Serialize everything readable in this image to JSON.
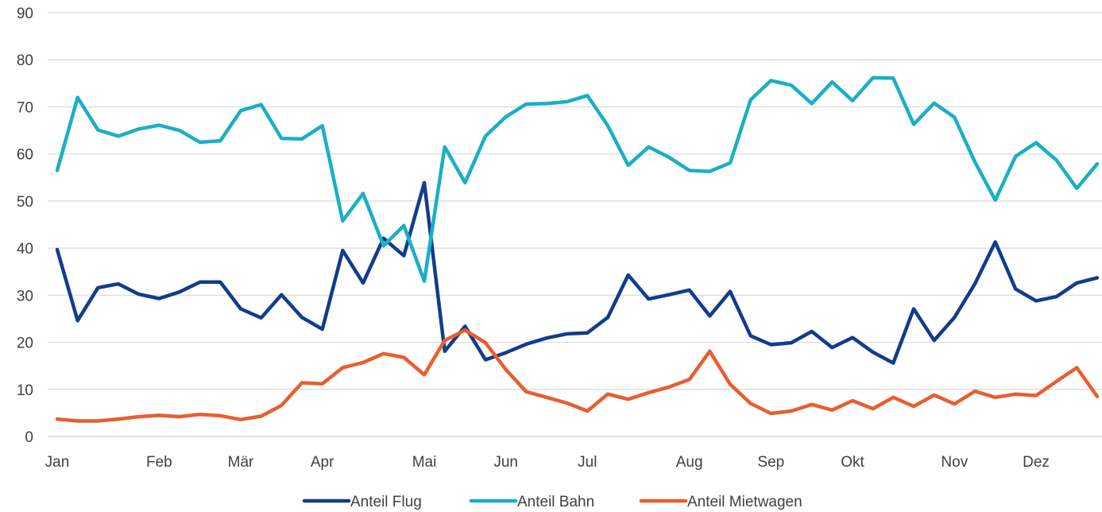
{
  "chart_data": {
    "type": "line",
    "title": "",
    "xlabel": "",
    "ylabel": "",
    "ylim": [
      0,
      90
    ],
    "yticks": [
      "0",
      "10",
      "20",
      "30",
      "40",
      "50",
      "60",
      "70",
      "80",
      "90"
    ],
    "grid": true,
    "legend_position": "bottom",
    "month_labels": [
      {
        "label": "Jan",
        "x": 0
      },
      {
        "label": "Feb",
        "x": 5
      },
      {
        "label": "Mär",
        "x": 9
      },
      {
        "label": "Apr",
        "x": 13
      },
      {
        "label": "Mai",
        "x": 18
      },
      {
        "label": "Jun",
        "x": 22
      },
      {
        "label": "Jul",
        "x": 26
      },
      {
        "label": "Aug",
        "x": 31
      },
      {
        "label": "Sep",
        "x": 35
      },
      {
        "label": "Okt",
        "x": 39
      },
      {
        "label": "Nov",
        "x": 44
      },
      {
        "label": "Dez",
        "x": 48
      }
    ],
    "series": [
      {
        "name": "Anteil Flug",
        "color": "#123c8c",
        "values": [
          39.7,
          24.6,
          31.6,
          32.4,
          30.2,
          29.3,
          30.7,
          32.8,
          32.8,
          27.1,
          25.2,
          30.1,
          25.3,
          22.8,
          39.5,
          32.6,
          42.1,
          38.4,
          53.9,
          18.1,
          23.4,
          16.3,
          17.8,
          19.6,
          20.9,
          21.8,
          22.0,
          25.3,
          34.3,
          29.2,
          30.1,
          31.1,
          25.6,
          30.8,
          21.4,
          19.5,
          19.9,
          22.3,
          18.9,
          21.0,
          17.9,
          15.6,
          27.1,
          20.4,
          25.3,
          32.4,
          41.3,
          31.3,
          28.8,
          29.7,
          32.6,
          33.7
        ]
      },
      {
        "name": "Anteil Bahn",
        "color": "#1aafc6",
        "values": [
          56.5,
          72.0,
          65.1,
          63.8,
          65.3,
          66.1,
          65.0,
          62.5,
          62.8,
          69.2,
          70.5,
          63.3,
          63.2,
          66.0,
          45.8,
          51.6,
          40.5,
          44.8,
          33.0,
          61.5,
          53.9,
          63.8,
          67.9,
          70.6,
          70.7,
          71.1,
          72.4,
          66.0,
          57.6,
          61.5,
          59.3,
          56.5,
          56.3,
          58.1,
          71.5,
          75.6,
          74.6,
          70.7,
          75.3,
          71.3,
          76.2,
          76.1,
          66.3,
          70.8,
          67.8,
          58.3,
          50.2,
          59.5,
          62.4,
          58.7,
          52.7,
          57.9
        ]
      },
      {
        "name": "Anteil Mietwagen",
        "color": "#e85e30",
        "values": [
          3.7,
          3.3,
          3.3,
          3.7,
          4.2,
          4.5,
          4.2,
          4.7,
          4.4,
          3.6,
          4.3,
          6.6,
          11.4,
          11.2,
          14.6,
          15.7,
          17.6,
          16.8,
          13.1,
          20.4,
          22.6,
          19.9,
          14.2,
          9.5,
          8.3,
          7.1,
          5.4,
          9.0,
          7.9,
          9.3,
          10.5,
          12.1,
          18.1,
          11.1,
          7.0,
          4.9,
          5.4,
          6.8,
          5.6,
          7.6,
          5.9,
          8.3,
          6.4,
          8.8,
          6.9,
          9.6,
          8.3,
          9.0,
          8.7,
          11.7,
          14.6,
          8.5
        ]
      }
    ]
  }
}
